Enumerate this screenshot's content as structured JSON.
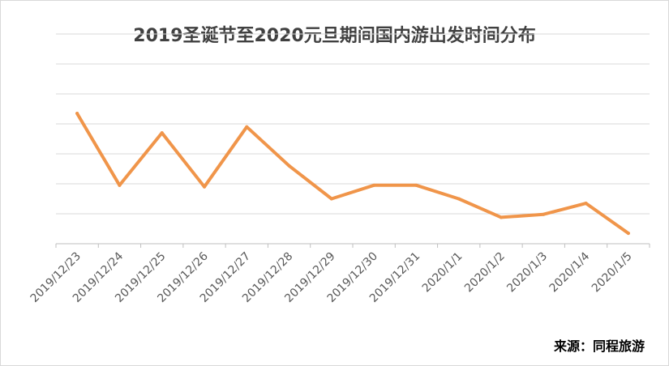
{
  "chart_data": {
    "type": "line",
    "title": "2019圣诞节至2020元旦期间国内游出发时间分布",
    "xlabel": "",
    "ylabel": "",
    "categories": [
      "2019/12/23",
      "2019/12/24",
      "2019/12/25",
      "2019/12/26",
      "2019/12/27",
      "2019/12/28",
      "2019/12/29",
      "2019/12/30",
      "2019/12/31",
      "2020/1/1",
      "2020/1/2",
      "2020/1/3",
      "2020/1/4",
      "2020/1/5"
    ],
    "series": [
      {
        "values": [
          4.35,
          1.95,
          3.7,
          1.9,
          3.9,
          2.6,
          1.5,
          1.95,
          1.95,
          1.5,
          0.88,
          0.98,
          1.35,
          0.35
        ],
        "color": "#f0954a"
      }
    ],
    "ylim": [
      0,
      7
    ],
    "y_ticks_shown": false,
    "grid": true,
    "legend": "none"
  },
  "source_note": "来源：同程旅游"
}
